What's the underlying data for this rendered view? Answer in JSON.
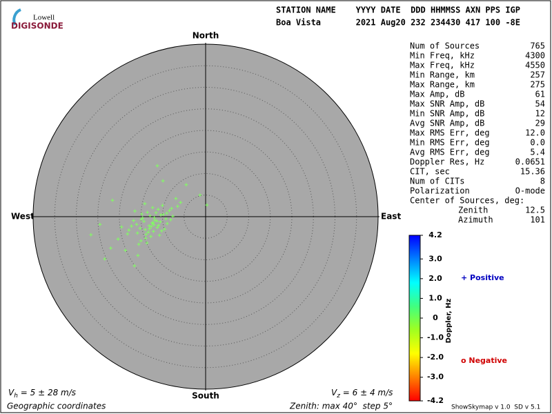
{
  "logo": {
    "top": "Lowell",
    "bottom": "DIGISONDE"
  },
  "header": {
    "columns": "STATION NAME    YYYY DATE  DDD HHMMSS AXN PPS IGP",
    "values": "Boa Vista       2021 Aug20 232 234430 417 100 -8E"
  },
  "stats": [
    [
      "Num of Sources",
      "765"
    ],
    [
      "Min Freq, kHz",
      "4300"
    ],
    [
      "Max Freq, kHz",
      "4550"
    ],
    [
      "Min Range, km",
      "257"
    ],
    [
      "Max Range, km",
      "275"
    ],
    [
      "Max Amp, dB",
      "61"
    ],
    [
      "Max SNR Amp, dB",
      "54"
    ],
    [
      "Min SNR Amp, dB",
      "12"
    ],
    [
      "Avg SNR Amp, dB",
      "29"
    ],
    [
      "Max RMS Err, deg",
      "12.0"
    ],
    [
      "Min RMS Err, deg",
      "0.0"
    ],
    [
      "Avg RMS Err, deg",
      "5.4"
    ],
    [
      "Doppler Res, Hz",
      "0.0651"
    ],
    [
      "CIT, sec",
      "15.36"
    ],
    [
      "Num of CITs",
      "8"
    ],
    [
      "Polarization",
      "O-mode"
    ]
  ],
  "center": {
    "title": "Center of Sources, deg:",
    "rows": [
      [
        "Zenith",
        "12.5"
      ],
      [
        "Azimuth",
        "101"
      ]
    ]
  },
  "chart_data": {
    "type": "scatter",
    "directions": {
      "north": "North",
      "south": "South",
      "west": "West",
      "east": "East"
    },
    "rlim": [
      0,
      40
    ],
    "rings": [
      5,
      10,
      15,
      20,
      25,
      30,
      35,
      40
    ],
    "color": "#80ff60",
    "x": [
      -13.1,
      -12.4,
      -14.0,
      -11.8,
      -10.5,
      -15.2,
      -13.8,
      -12.9,
      -11.2,
      -9.8,
      -16.0,
      -14.6,
      -12.1,
      -10.9,
      -13.5,
      -15.8,
      -17.2,
      -11.5,
      -9.2,
      -8.4,
      -12.7,
      -14.3,
      -13.0,
      -10.2,
      -16.7,
      -18.1,
      -12.3,
      -11.0,
      -7.6,
      -9.5,
      -13.9,
      -15.0,
      -14.8,
      -12.0,
      -10.7,
      -8.9,
      -17.8,
      -19.5,
      -16.4,
      -11.9,
      -13.3,
      -12.6,
      -10.0,
      -14.1,
      -15.5,
      -9.0,
      -7.9,
      -6.5,
      -5.8,
      -8.1,
      -11.3,
      -20.3,
      -21.6,
      -23.4,
      -26.6,
      -24.5,
      -22.0,
      -16.5,
      -15.7,
      -18.6,
      -11.2,
      -9.9,
      -4.5,
      -1.3,
      0.3,
      -6.9,
      -13.6,
      -14.9,
      -12.2,
      -10.4
    ],
    "y": [
      -2.1,
      -1.5,
      -3.0,
      -0.8,
      -1.2,
      -2.7,
      -4.1,
      0.2,
      -2.5,
      0.5,
      -1.8,
      -0.3,
      -3.4,
      -2.0,
      1.0,
      -3.8,
      -2.2,
      0.9,
      -0.5,
      1.4,
      -4.6,
      -1.1,
      -2.8,
      -3.3,
      -0.9,
      -4.0,
      2.1,
      1.7,
      0.1,
      -2.9,
      -5.0,
      -5.6,
      0.6,
      -1.9,
      -4.3,
      -1.6,
      -3.1,
      -2.4,
      1.3,
      -0.2,
      -3.6,
      -2.3,
      2.6,
      3.0,
      -6.4,
      0.8,
      1.9,
      2.4,
      3.3,
      -0.7,
      -1.0,
      -5.2,
      3.8,
      -9.8,
      -4.2,
      -1.8,
      -7.3,
      -11.4,
      -9.0,
      -7.8,
      11.8,
      8.3,
      7.4,
      5.0,
      2.7,
      4.2,
      -6.1,
      -0.6,
      -1.4,
      0.4
    ],
    "colorbar": {
      "label": "Doppler, Hz",
      "lim": [
        -4.2,
        4.2
      ],
      "ticks": [
        4.2,
        {
          "value": 3,
          "label": "3.0"
        },
        {
          "value": 2,
          "label": "2.0"
        },
        {
          "value": 1,
          "label": "1.0"
        },
        0,
        {
          "value": -1,
          "label": "-1.0"
        },
        {
          "value": -2,
          "label": "-2.0"
        },
        {
          "value": -3,
          "label": "-3.0"
        },
        -4.2
      ],
      "colors": [
        "#ff0000",
        "#ff8000",
        "#ffff00",
        "#a0ff20",
        "#40ff80",
        "#00ffff",
        "#0080ff",
        "#0000ff"
      ]
    },
    "legend": {
      "positive": "+ Positive",
      "positive_color": "#0000c0",
      "negative": "o Negative",
      "negative_color": "#d00000"
    }
  },
  "footer": {
    "vh": {
      "symbol": "V",
      "sub": "h",
      "text": " = 5 ± 28 m/s"
    },
    "vz": {
      "symbol": "V",
      "sub": "z",
      "text": " = 6 ± 4 m/s"
    },
    "coords": "Geographic coordinates",
    "zenith": "Zenith: max 40°  step 5°",
    "version": "ShowSkymap v 1.0  SD v 5.1"
  }
}
